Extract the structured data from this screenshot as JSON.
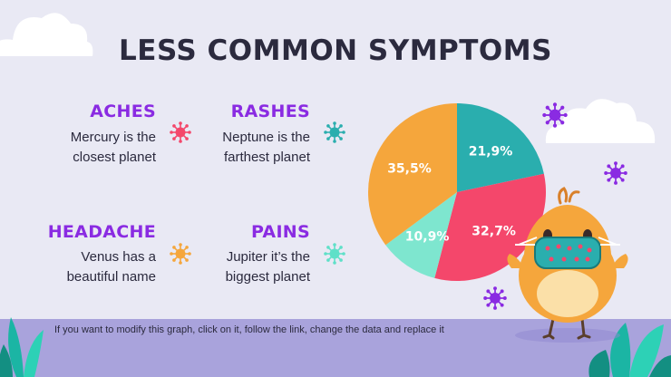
{
  "title": "LESS COMMON SYMPTOMS",
  "symptoms": [
    {
      "title": "ACHES",
      "line1": "Mercury is the",
      "line2": "closest planet",
      "icon": "virus-icon",
      "icon_color": "#f4476b"
    },
    {
      "title": "RASHES",
      "line1": "Neptune is the",
      "line2": "farthest planet",
      "icon": "virus-icon",
      "icon_color": "#2aaeae"
    },
    {
      "title": "HEADACHE",
      "line1": "Venus has a",
      "line2": "beautiful name",
      "icon": "virus-icon",
      "icon_color": "#f5a63c"
    },
    {
      "title": "PAINS",
      "line1": "Jupiter it’s the",
      "line2": "biggest planet",
      "icon": "virus-icon",
      "icon_color": "#5fe0c8"
    }
  ],
  "footnote": "If you want to modify this graph, click on it, follow the link, change the data and replace it",
  "colors": {
    "accent": "#8a2be2",
    "pink": "#f4476b",
    "teal": "#2aaeae",
    "orange": "#f5a63c",
    "mint": "#7ee6cf",
    "background": "#e9e9f4",
    "footer": "#a9a3dc"
  },
  "chart_data": {
    "type": "pie",
    "slices": [
      {
        "label": "21,9%",
        "value": 21.9,
        "color": "#2aaeae"
      },
      {
        "label": "32,7%",
        "value": 32.7,
        "color": "#f4476b"
      },
      {
        "label": "10,9%",
        "value": 10.9,
        "color": "#7ee6cf"
      },
      {
        "label": "35,5%",
        "value": 35.5,
        "color": "#f5a63c"
      }
    ]
  }
}
